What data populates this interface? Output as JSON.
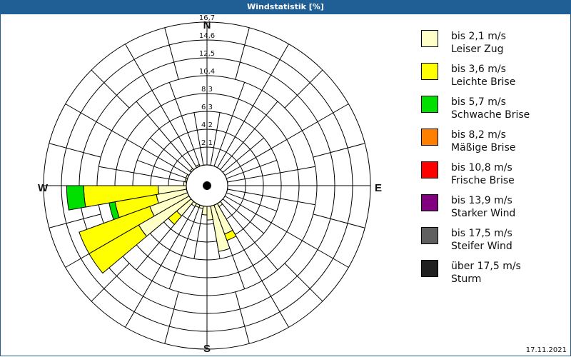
{
  "title": "Windstatistik [%]",
  "date": "17.11.2021",
  "compass": {
    "n": "N",
    "e": "E",
    "s": "S",
    "w": "W"
  },
  "legend": [
    {
      "range": "bis 2,1 m/s",
      "name": "Leiser Zug",
      "color": "#ffffc8"
    },
    {
      "range": "bis 3,6 m/s",
      "name": "Leichte Brise",
      "color": "#ffff00"
    },
    {
      "range": "bis 5,7 m/s",
      "name": "Schwache Brise",
      "color": "#00e000"
    },
    {
      "range": "bis 8,2 m/s",
      "name": "Mäßige Brise",
      "color": "#ff8000"
    },
    {
      "range": "bis 10,8 m/s",
      "name": "Frische Brise",
      "color": "#ff0000"
    },
    {
      "range": "bis 13,9 m/s",
      "name": "Starker Wind",
      "color": "#800080"
    },
    {
      "range": "bis 17,5 m/s",
      "name": "Steifer Wind",
      "color": "#606060"
    },
    {
      "range": "über 17,5 m/s",
      "name": "Sturm",
      "color": "#202020"
    }
  ],
  "chart_data": {
    "type": "windrose",
    "title": "Windstatistik [%]",
    "radial_ticks": [
      "2,1",
      "4,2",
      "6,3",
      "8,3",
      "10,4",
      "12,5",
      "14,6",
      "16,7"
    ],
    "radial_max": 16.7,
    "sector_width_deg": 10,
    "series_names": [
      "bis 2,1 m/s",
      "bis 3,6 m/s",
      "bis 5,7 m/s"
    ],
    "sectors": [
      {
        "dir": 265,
        "values": [
          3.3,
          8.7,
          2.0
        ]
      },
      {
        "dir": 255,
        "values": [
          3.6,
          4.9,
          0.7
        ]
      },
      {
        "dir": 245,
        "values": [
          4.7,
          8.8,
          0
        ]
      },
      {
        "dir": 235,
        "values": [
          6.8,
          6.7,
          0
        ]
      },
      {
        "dir": 225,
        "values": [
          2.2,
          1.3,
          0
        ]
      },
      {
        "dir": 215,
        "values": [
          0.4,
          0,
          0
        ]
      },
      {
        "dir": 205,
        "values": [
          0.3,
          0,
          0
        ]
      },
      {
        "dir": 195,
        "values": [
          0.3,
          0,
          0
        ]
      },
      {
        "dir": 185,
        "values": [
          1.0,
          0,
          0
        ]
      },
      {
        "dir": 175,
        "values": [
          1.6,
          0,
          0
        ]
      },
      {
        "dir": 165,
        "values": [
          5.4,
          0,
          0
        ]
      },
      {
        "dir": 155,
        "values": [
          3.6,
          0.8,
          0
        ]
      },
      {
        "dir": 145,
        "values": [
          0.4,
          0,
          0
        ]
      },
      {
        "dir": 275,
        "values": [
          0.3,
          0,
          0
        ]
      },
      {
        "dir": 285,
        "values": [
          0.2,
          0,
          0
        ]
      },
      {
        "dir": 295,
        "values": [
          0.2,
          0,
          0
        ]
      },
      {
        "dir": 315,
        "values": [
          0.2,
          0,
          0
        ]
      },
      {
        "dir": 335,
        "values": [
          0.2,
          0,
          0
        ]
      }
    ],
    "legend_position": "right"
  }
}
